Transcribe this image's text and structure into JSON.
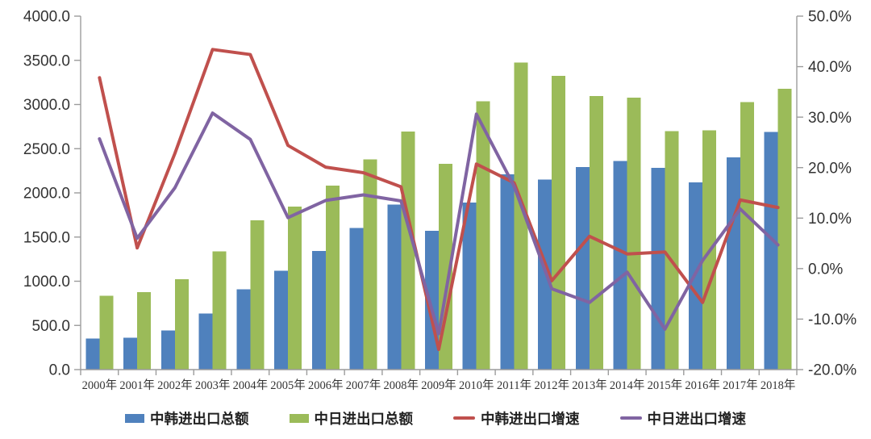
{
  "chart_data": {
    "type": "combo",
    "title": "",
    "categories": [
      "2000年",
      "2001年",
      "2002年",
      "2003年",
      "2004年",
      "2005年",
      "2006年",
      "2007年",
      "2008年",
      "2009年",
      "2010年",
      "2011年",
      "2012年",
      "2013年",
      "2014年",
      "2015年",
      "2016年",
      "2017年",
      "2018年"
    ],
    "series": [
      {
        "name": "中韩进出口总额",
        "type": "bar",
        "axis": "left",
        "color": "#4F81BD",
        "values": [
          350,
          362,
          445,
          635,
          908,
          1120,
          1342,
          1604,
          1868,
          1570,
          1890,
          2208,
          2152,
          2290,
          2360,
          2285,
          2120,
          2400,
          2690
        ]
      },
      {
        "name": "中日进出口总额",
        "type": "bar",
        "axis": "left",
        "color": "#9BBB59",
        "values": [
          835,
          876,
          1024,
          1340,
          1690,
          1845,
          2080,
          2378,
          2695,
          2330,
          3035,
          3475,
          3326,
          3096,
          3076,
          2700,
          2706,
          3026,
          3180
        ]
      },
      {
        "name": "中韩进出口增速",
        "type": "line",
        "axis": "right",
        "color": "#C0504D",
        "values": [
          37.8,
          4.1,
          22.8,
          43.4,
          42.4,
          24.4,
          20.1,
          19.0,
          16.2,
          -16.0,
          20.7,
          17.0,
          -2.4,
          6.4,
          2.9,
          3.3,
          -6.7,
          13.6,
          12.1
        ]
      },
      {
        "name": "中日进出口增速",
        "type": "line",
        "axis": "right",
        "color": "#8064A2",
        "values": [
          25.7,
          6.0,
          16.0,
          30.8,
          25.6,
          10.1,
          13.5,
          14.6,
          13.4,
          -12.9,
          30.6,
          16.3,
          -4.0,
          -6.7,
          -0.7,
          -12.0,
          1.6,
          11.8,
          4.7
        ]
      }
    ],
    "left_axis": {
      "min": 0,
      "max": 4000,
      "step": 500,
      "tick_labels": [
        "0.0",
        "500.0",
        "1000.0",
        "1500.0",
        "2000.0",
        "2500.0",
        "3000.0",
        "3500.0",
        "4000.0"
      ]
    },
    "right_axis": {
      "min": -20,
      "max": 50,
      "step": 10,
      "tick_labels": [
        "-20.0%",
        "-10.0%",
        "0.0%",
        "10.0%",
        "20.0%",
        "30.0%",
        "40.0%",
        "50.0%"
      ]
    },
    "grid": false,
    "legend_position": "bottom"
  },
  "style": {
    "axis_line_color": "#9c9c9c",
    "label_color": "#333333",
    "background": "#ffffff"
  }
}
